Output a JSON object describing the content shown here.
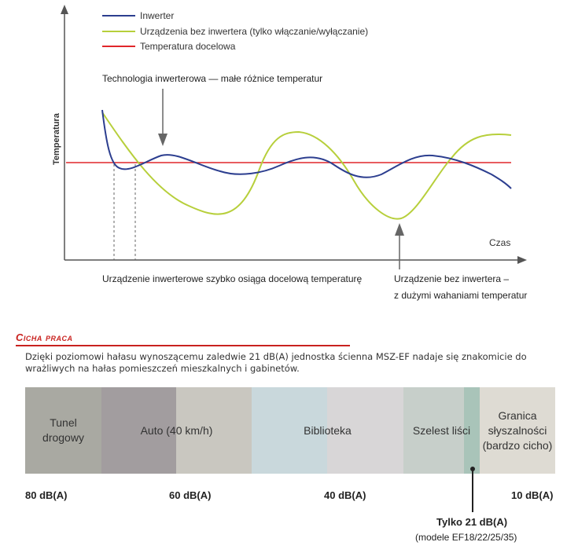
{
  "chart1": {
    "y_axis_label": "Temperatura",
    "x_axis_label": "Czas",
    "legend": [
      {
        "label": "Inwerter",
        "color": "#2c3e8f"
      },
      {
        "label": "Urządzenia bez inwertera (tylko włączanie/wyłączanie)",
        "color": "#b7cf3b"
      },
      {
        "label": "Temperatura docelowa",
        "color": "#e0262a"
      }
    ],
    "annotation_top": "Technologia inwerterowa — małe różnice temperatur",
    "caption_left": "Urządzenie inwerterowe szybko osiąga docelową temperaturę",
    "caption_right_line1": "Urządzenie bez inwertera –",
    "caption_right_line2": "z dużymi wahaniami temperatur"
  },
  "section": {
    "title": "Cicha praca",
    "description": "Dzięki poziomowi hałasu wynoszącemu zaledwie 21 dB(A) jednostka ścienna MSZ-EF nadaje się znakomicie do wrażliwych na hałas pomieszczeń mieszkalnych i gabinetów."
  },
  "noise_scale": {
    "bands": [
      {
        "label_line1": "Tunel",
        "label_line2": "drogowy",
        "color": "#a9a9a2"
      },
      {
        "label_line1": "Auto (40 km/h)",
        "label_line2": "",
        "color": "#a29d9f"
      },
      {
        "label_line1": "",
        "label_line2": "",
        "color": "#c9c7c0"
      },
      {
        "label_line1": "Biblioteka",
        "label_line2": "",
        "color": "#c9d8dc"
      },
      {
        "label_line1": "",
        "label_line2": "",
        "color": "#d8d6d7"
      },
      {
        "label_line1": "Szelest liści",
        "label_line2": "",
        "color": "#c7cfca"
      },
      {
        "label_line1": "",
        "label_line2": "",
        "color": "#a9c4b9"
      },
      {
        "label_line1": "Granica",
        "label_line2": "słyszalności",
        "label_line3": "(bardzo cicho)",
        "color": "#dedbd3"
      }
    ],
    "ticks": [
      "80 dB(A)",
      "60 dB(A)",
      "40 dB(A)",
      "10 dB(A)"
    ],
    "marker_title": "Tylko 21 dB(A)",
    "marker_subtitle": "(modele EF18/22/25/35)"
  }
}
